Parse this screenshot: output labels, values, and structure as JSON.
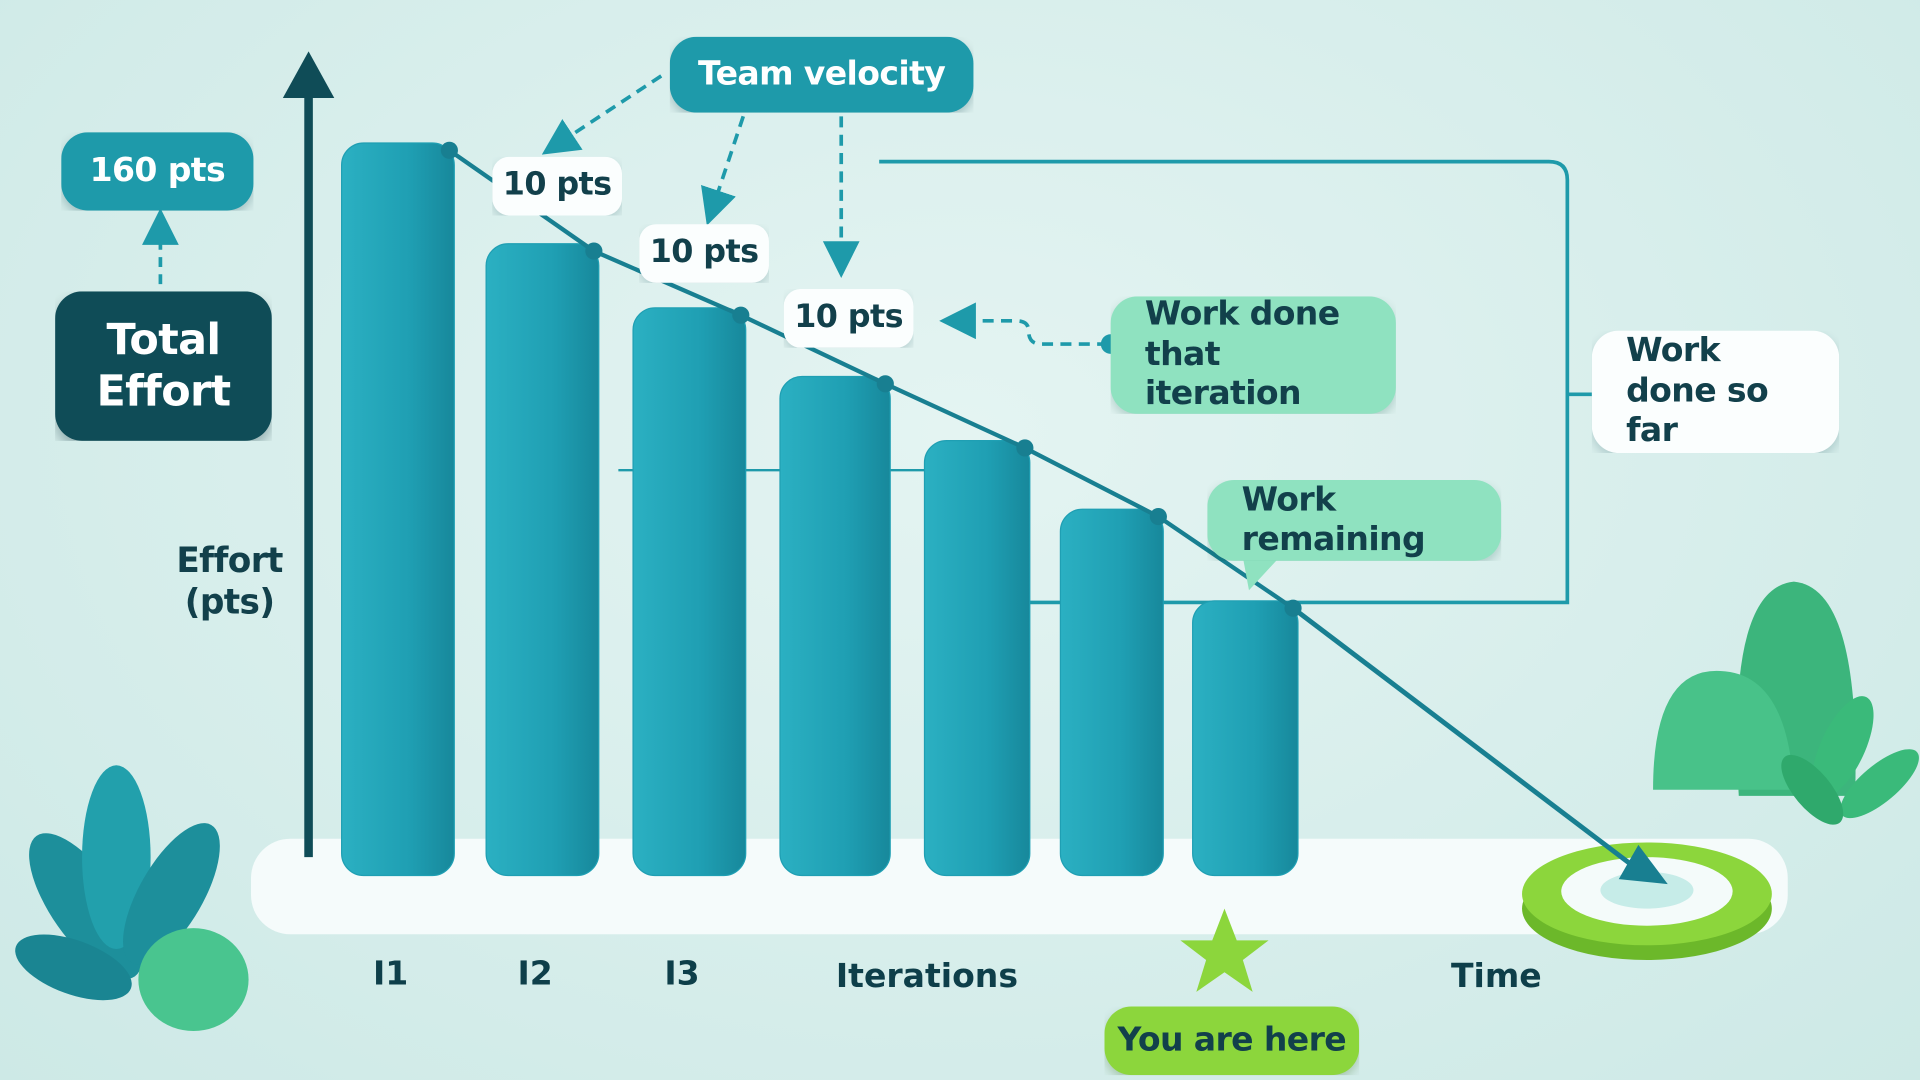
{
  "chart_data": {
    "type": "bar",
    "categories": [
      "I1",
      "I2",
      "I3",
      null,
      null,
      null,
      null
    ],
    "values": [
      160,
      138,
      124,
      109,
      95,
      80,
      60
    ],
    "color": "#1f9fb3",
    "ylim": [
      0,
      180
    ],
    "y_label": "Effort (pts)",
    "x_label": "Iterations",
    "time_label": "Time",
    "annotations": {
      "total_effort": "Total Effort",
      "total_points": "160 pts",
      "team_velocity": "Team velocity",
      "velocity_labels": [
        "10 pts",
        "10 pts",
        "10 pts"
      ],
      "work_done_iteration": "Work done that iteration",
      "work_done_so_far": "Work done so far",
      "work_remaining": "Work remaining",
      "you_are_here": "You are here"
    }
  }
}
